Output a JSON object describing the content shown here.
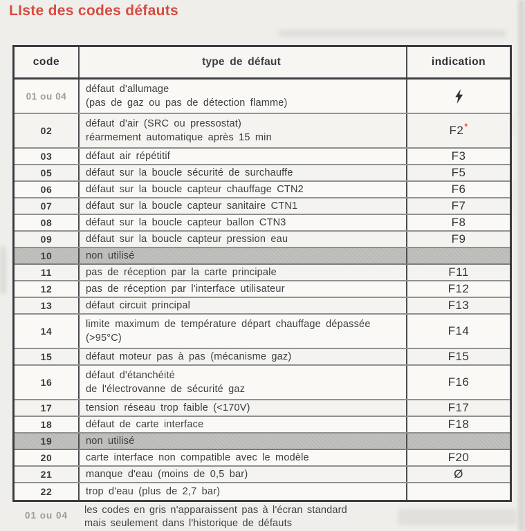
{
  "title": "LIste des codes défauts",
  "colors": {
    "title_red": "#d94b42",
    "star_red": "#e0463a",
    "band_gray": "#b9bab6",
    "muted_code_gray": "#9c9d99"
  },
  "table": {
    "headers": [
      "code",
      "type de défaut",
      "indication"
    ],
    "rows": [
      {
        "code": "01 ou 04",
        "muted_code": true,
        "type": "défaut d'allumage\n(pas de gaz ou pas de détection flamme)",
        "indication_icon": "lightning-bolt-icon"
      },
      {
        "code": "02",
        "type": "défaut d'air (SRC ou pressostat)\nréarmement automatique après 15 min",
        "indication": "F2",
        "indication_star": "*"
      },
      {
        "code": "03",
        "type": "défaut air répétitif",
        "indication": "F3"
      },
      {
        "code": "05",
        "type": "défaut sur la boucle sécurité de surchauffe",
        "indication": "F5"
      },
      {
        "code": "06",
        "type": "défaut sur la boucle capteur chauffage CTN2",
        "indication": "F6"
      },
      {
        "code": "07",
        "type": "défaut sur la boucle capteur sanitaire CTN1",
        "indication": "F7"
      },
      {
        "code": "08",
        "type": "défaut sur la boucle capteur ballon CTN3",
        "indication": "F8"
      },
      {
        "code": "09",
        "type": "défaut sur la boucle capteur pression eau",
        "indication": "F9"
      },
      {
        "code": "10",
        "type": "non utilisé",
        "unused_band": true,
        "indication": ""
      },
      {
        "code": "11",
        "type": "pas de réception par la carte principale",
        "indication": "F11"
      },
      {
        "code": "12",
        "type": "pas de réception par l'interface utilisateur",
        "indication": "F12"
      },
      {
        "code": "13",
        "type": "défaut circuit principal",
        "indication": "F13"
      },
      {
        "code": "14",
        "type": "limite maximum de température départ chauffage dépassée\n(>95°C)",
        "indication": "F14"
      },
      {
        "code": "15",
        "type": "défaut moteur pas à pas (mécanisme gaz)",
        "indication": "F15"
      },
      {
        "code": "16",
        "type": "défaut d'étanchéité\nde l'électrovanne de sécurité gaz",
        "indication": "F16"
      },
      {
        "code": "17",
        "type": "tension réseau trop faible (<170V)",
        "indication": "F17"
      },
      {
        "code": "18",
        "type": "défaut de carte interface",
        "indication": "F18"
      },
      {
        "code": "19",
        "type": "non utilisé",
        "unused_band": true,
        "indication": ""
      },
      {
        "code": "20",
        "type": "carte interface non compatible avec le modèle",
        "indication": "F20"
      },
      {
        "code": "21",
        "type": "manque d'eau (moins de 0,5 bar)",
        "indication": "Ø"
      },
      {
        "code": "22",
        "type": "trop d'eau (plus de 2,7 bar)",
        "indication": ""
      }
    ]
  },
  "footnote": {
    "code": "01 ou 04",
    "text": "les codes en gris n'apparaissent pas à l'écran standard\nmais seulement dans l'historique de défauts"
  }
}
